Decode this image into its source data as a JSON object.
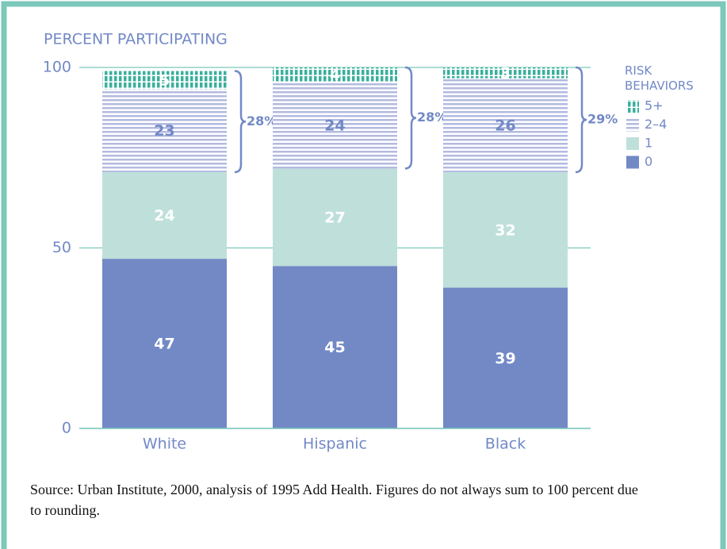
{
  "chart_data": {
    "type": "stacked_bar",
    "y_axis_label": "PERCENT PARTICIPATING",
    "categories": [
      "White",
      "Hispanic",
      "Black"
    ],
    "series": [
      {
        "name": "0",
        "color": "#7289c6",
        "values": [
          47,
          45,
          39
        ]
      },
      {
        "name": "1",
        "color": "#bfe0da",
        "values": [
          24,
          27,
          32
        ]
      },
      {
        "name": "2–4",
        "color": "#b3bae0",
        "hatch": "horizontal",
        "values": [
          23,
          24,
          26
        ]
      },
      {
        "name": "5+",
        "color": "#3aaf9c",
        "hatch": "vertical",
        "values": [
          5,
          4,
          3
        ]
      }
    ],
    "legend_title": "RISK BEHAVIORS",
    "bracket_values": [
      28,
      28,
      29
    ],
    "bracket_labels": [
      "28%",
      "28%",
      "29%"
    ],
    "ylim": [
      0,
      100
    ],
    "yticks": [
      0,
      50,
      100
    ],
    "grid": true,
    "source": "Source: Urban Institute, 2000, analysis of 1995 Add Health. Figures do not always sum to 100 percent due to rounding."
  }
}
